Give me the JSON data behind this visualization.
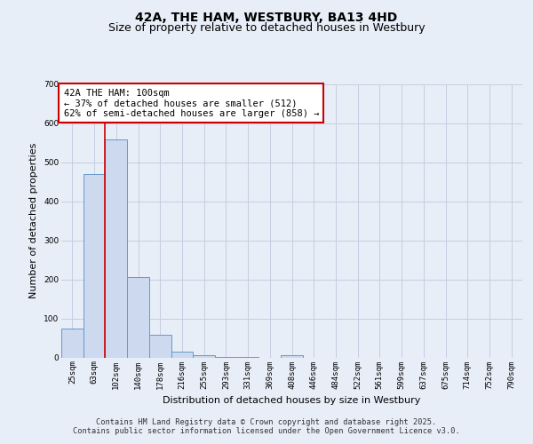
{
  "title": "42A, THE HAM, WESTBURY, BA13 4HD",
  "subtitle": "Size of property relative to detached houses in Westbury",
  "xlabel": "Distribution of detached houses by size in Westbury",
  "ylabel": "Number of detached properties",
  "categories": [
    "25sqm",
    "63sqm",
    "102sqm",
    "140sqm",
    "178sqm",
    "216sqm",
    "255sqm",
    "293sqm",
    "331sqm",
    "369sqm",
    "408sqm",
    "446sqm",
    "484sqm",
    "522sqm",
    "561sqm",
    "599sqm",
    "637sqm",
    "675sqm",
    "714sqm",
    "752sqm",
    "790sqm"
  ],
  "values": [
    75,
    470,
    560,
    205,
    57,
    14,
    6,
    2,
    1,
    0,
    5,
    0,
    0,
    0,
    0,
    0,
    0,
    0,
    0,
    0,
    0
  ],
  "bar_color": "#ccd9ee",
  "bar_edge_color": "#6699cc",
  "grid_color": "#c5cfe0",
  "background_color": "#e8eef8",
  "red_line_x": 1.5,
  "red_line_color": "#cc0000",
  "annotation_text": "42A THE HAM: 100sqm\n← 37% of detached houses are smaller (512)\n62% of semi-detached houses are larger (858) →",
  "annotation_box_color": "#ffffff",
  "annotation_box_edge": "#cc0000",
  "ylim": [
    0,
    700
  ],
  "yticks": [
    0,
    100,
    200,
    300,
    400,
    500,
    600,
    700
  ],
  "footer_line1": "Contains HM Land Registry data © Crown copyright and database right 2025.",
  "footer_line2": "Contains public sector information licensed under the Open Government Licence v3.0.",
  "title_fontsize": 10,
  "subtitle_fontsize": 9,
  "axis_label_fontsize": 8,
  "tick_fontsize": 6.5,
  "annotation_fontsize": 7.5,
  "footer_fontsize": 6.2
}
